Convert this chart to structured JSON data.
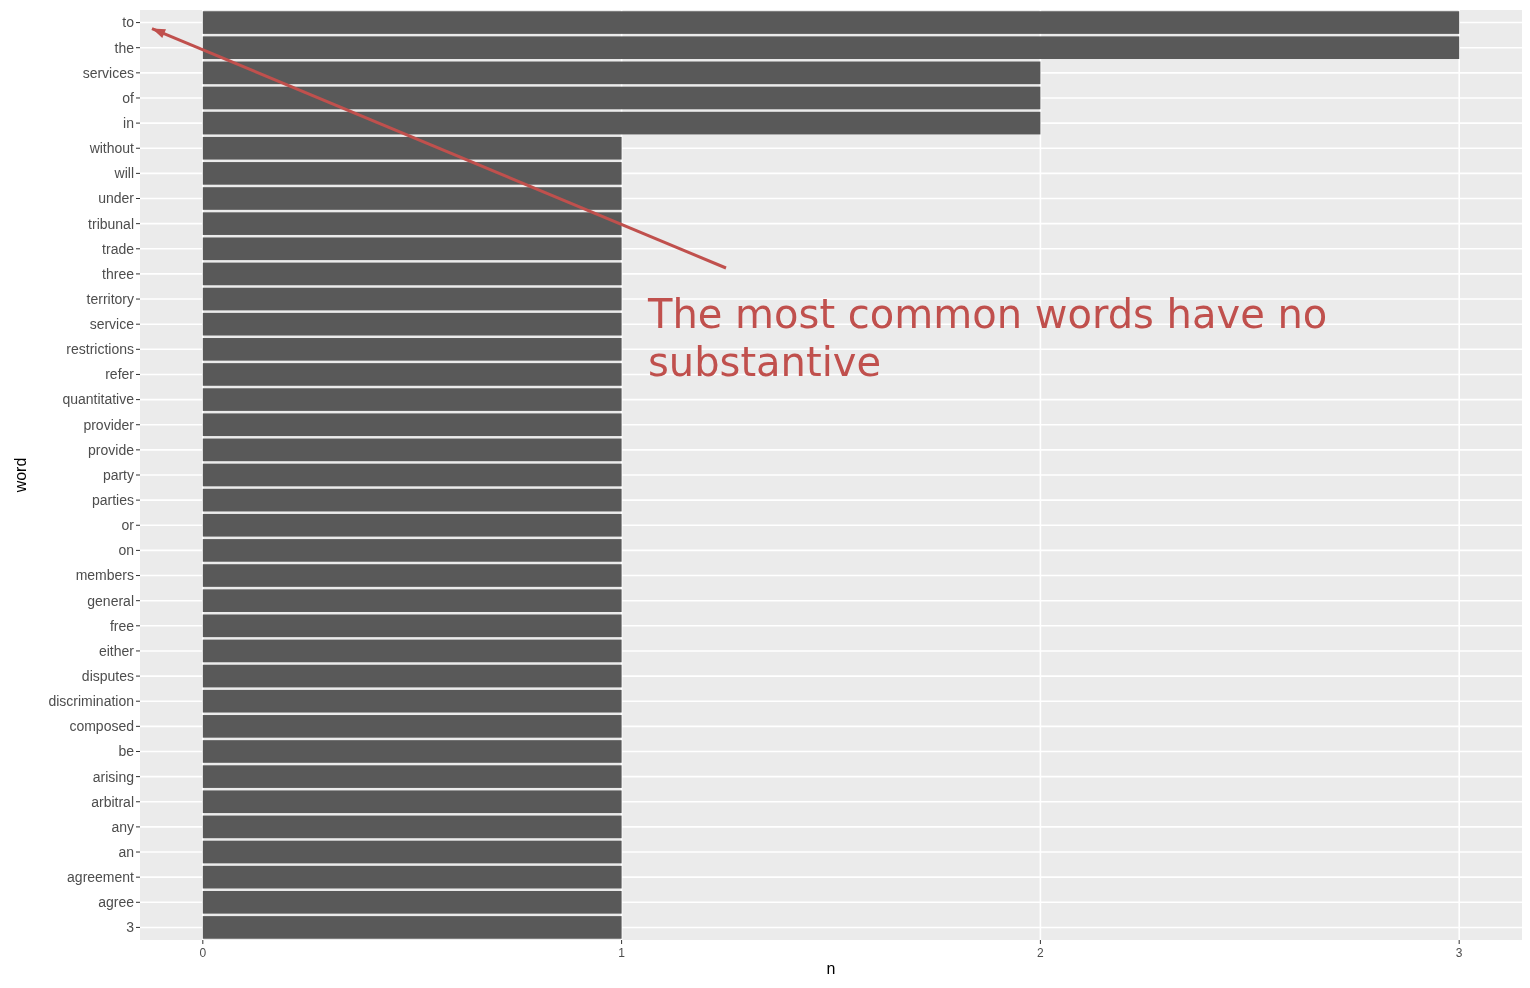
{
  "chart_data": {
    "type": "bar",
    "orientation": "horizontal",
    "categories": [
      "to",
      "the",
      "services",
      "of",
      "in",
      "without",
      "will",
      "under",
      "tribunal",
      "trade",
      "three",
      "territory",
      "service",
      "restrictions",
      "refer",
      "quantitative",
      "provider",
      "provide",
      "party",
      "parties",
      "or",
      "on",
      "members",
      "general",
      "free",
      "either",
      "disputes",
      "discrimination",
      "composed",
      "be",
      "arising",
      "arbitral",
      "any",
      "an",
      "agreement",
      "agree",
      "3"
    ],
    "values": [
      3,
      3,
      2,
      2,
      2,
      1,
      1,
      1,
      1,
      1,
      1,
      1,
      1,
      1,
      1,
      1,
      1,
      1,
      1,
      1,
      1,
      1,
      1,
      1,
      1,
      1,
      1,
      1,
      1,
      1,
      1,
      1,
      1,
      1,
      1,
      1,
      1
    ],
    "color": "#595959",
    "xlim": [
      -0.15,
      3.15
    ],
    "xticks": [
      0,
      1,
      2,
      3
    ],
    "xlabel": "n",
    "ylabel": "word",
    "grid": true,
    "annotations": [
      "The most common words have no substantive"
    ]
  }
}
